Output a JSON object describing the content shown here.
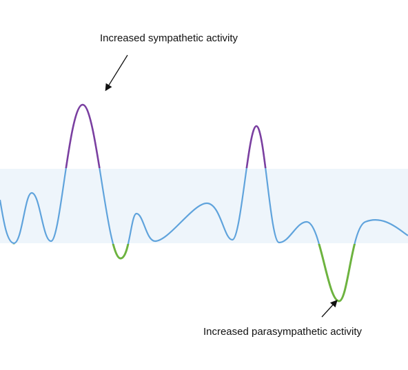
{
  "annotations": {
    "top": "Increased sympathetic activity",
    "bottom": "Increased parasympathetic activity"
  }
}
